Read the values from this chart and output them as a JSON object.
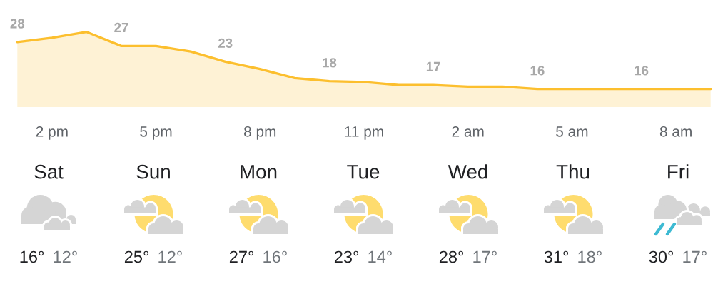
{
  "chart_data": [
    {
      "type": "area",
      "categories": [
        null,
        "2 pm",
        null,
        null,
        "5 pm",
        null,
        null,
        "8 pm",
        null,
        null,
        "11 pm",
        null,
        null,
        "2 am",
        null,
        null,
        "5 am",
        null,
        null,
        "8 am",
        null
      ],
      "values": [
        28,
        29.1,
        30.6,
        27,
        27,
        25.6,
        23,
        21.1,
        18.8,
        18,
        17.8,
        17,
        17,
        16.6,
        16.6,
        16,
        16,
        16,
        16,
        16,
        16
      ],
      "value_labels": [
        "28",
        null,
        null,
        "27",
        null,
        null,
        "23",
        null,
        null,
        "18",
        null,
        null,
        "17",
        null,
        null,
        "16",
        null,
        null,
        "16",
        null,
        null
      ],
      "color": "#fcbf2e",
      "tick_labels": "x"
    },
    {
      "type": "other",
      "categories": [
        "Sat",
        "Sun",
        "Mon",
        "Tue",
        "Wed",
        "Thu",
        "Fri"
      ],
      "series": [
        {
          "color": "#202124",
          "values": [
            16,
            25,
            27,
            23,
            28,
            31,
            30
          ],
          "value_labels": [
            "16°",
            "25°",
            "27°",
            "23°",
            "28°",
            "31°",
            "30°"
          ]
        },
        {
          "color": "#70757a",
          "values": [
            12,
            12,
            16,
            14,
            17,
            18,
            17
          ],
          "value_labels": [
            "12°",
            "12°",
            "16°",
            "14°",
            "17°",
            "18°",
            "17°"
          ]
        }
      ]
    }
  ]
}
